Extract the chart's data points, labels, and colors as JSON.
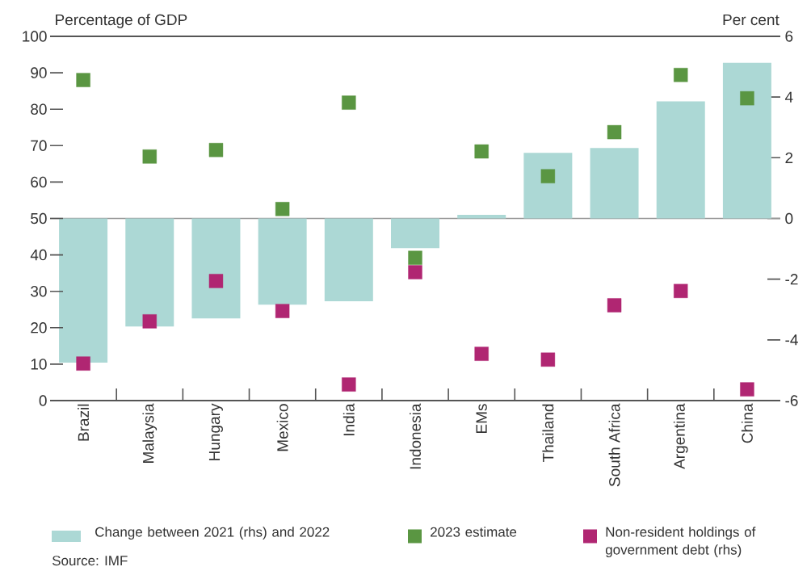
{
  "chart_data": {
    "type": "bar",
    "ylabel": "Percentage of GDP",
    "y2label": "Per cent",
    "categories": [
      "Brazil",
      "Malaysia",
      "Hungary",
      "Mexico",
      "India",
      "Indonesia",
      "EMs",
      "Thailand",
      "South Africa",
      "Argentina",
      "China"
    ],
    "series": [
      {
        "name": "Change between 2021 (rhs) and 2022",
        "axis": "y2",
        "color": "#acd8d5",
        "values": [
          -4.75,
          -3.56,
          -3.29,
          -2.84,
          -2.73,
          -0.98,
          0.12,
          2.16,
          2.32,
          3.86,
          5.13
        ]
      },
      {
        "name": "2023 estimate",
        "type": "scatter",
        "color": "#5a9642",
        "values": [
          88.0,
          67.0,
          68.8,
          52.6,
          81.8,
          39.2,
          68.4,
          61.6,
          73.7,
          89.4,
          83.0
        ]
      },
      {
        "name": "Non-resident holdings of government debt (rhs)",
        "type": "scatter",
        "axis": "y2",
        "color": "#b02672",
        "values": [
          -4.78,
          -3.39,
          -2.06,
          -3.05,
          -5.47,
          -1.77,
          -4.46,
          -4.65,
          -2.86,
          -2.39,
          -5.63
        ]
      }
    ],
    "ylim": [
      0,
      100
    ],
    "yticks": [
      0,
      10,
      20,
      30,
      40,
      50,
      60,
      70,
      80,
      90,
      100
    ],
    "y2lim": [
      -6,
      6
    ],
    "y2ticks": [
      -6,
      -4,
      -2,
      0,
      2,
      4,
      6
    ],
    "ref_lines": [
      {
        "axis": "y2",
        "value": 0
      }
    ],
    "marker": "square",
    "legend": "bottom",
    "annotations": [
      "Source:  IMF"
    ]
  }
}
